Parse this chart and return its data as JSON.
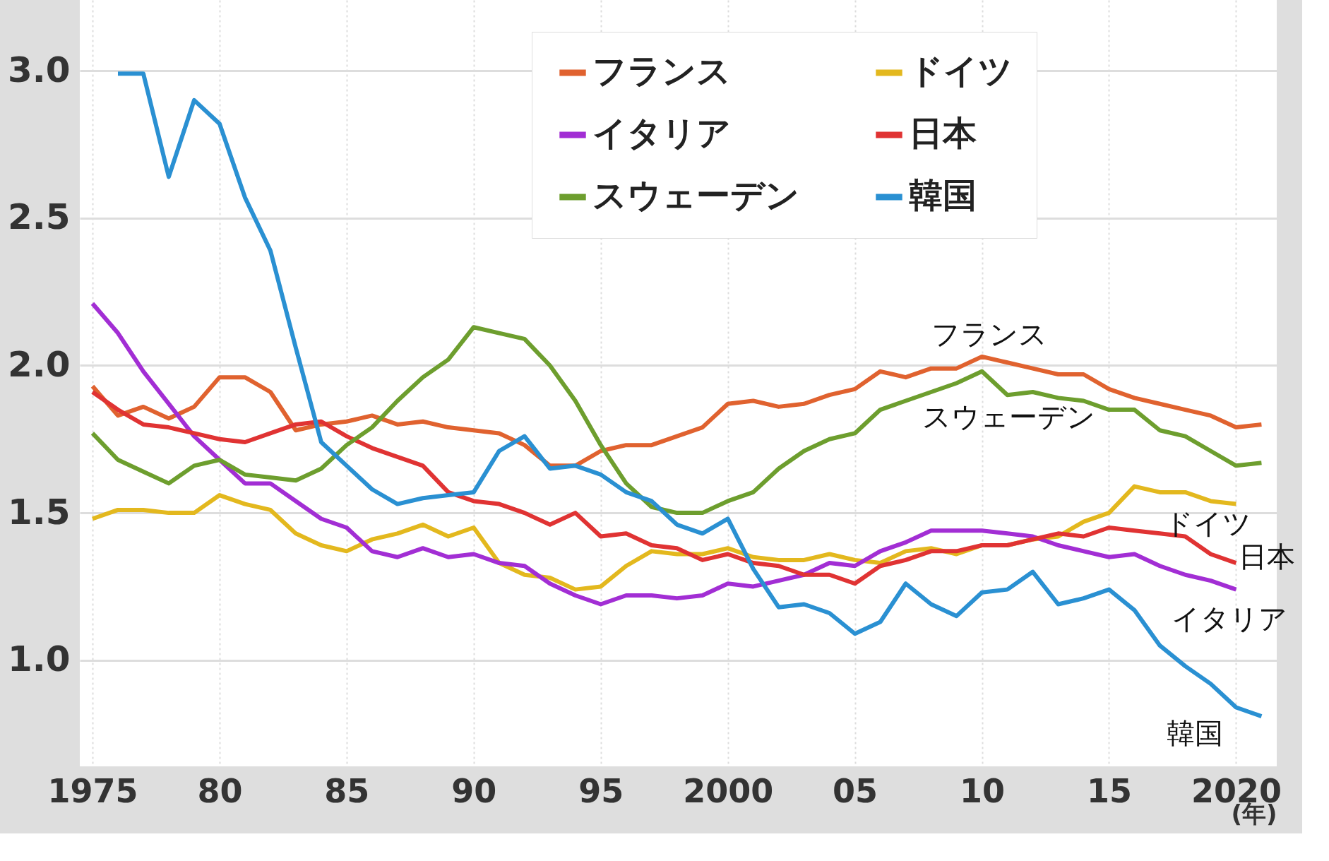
{
  "chart_data": {
    "type": "line",
    "xlabel": "(年)",
    "x": [
      1975,
      1976,
      1977,
      1978,
      1979,
      1980,
      1981,
      1982,
      1983,
      1984,
      1985,
      1986,
      1987,
      1988,
      1989,
      1990,
      1991,
      1992,
      1993,
      1994,
      1995,
      1996,
      1997,
      1998,
      1999,
      2000,
      2001,
      2002,
      2003,
      2004,
      2005,
      2006,
      2007,
      2008,
      2009,
      2010,
      2011,
      2012,
      2013,
      2014,
      2015,
      2016,
      2017,
      2018,
      2019,
      2020,
      2021
    ],
    "series": [
      {
        "name": "フランス",
        "color": "#e0622f",
        "values": [
          1.93,
          1.83,
          1.86,
          1.82,
          1.86,
          1.96,
          1.96,
          1.91,
          1.78,
          1.8,
          1.81,
          1.83,
          1.8,
          1.81,
          1.79,
          1.78,
          1.77,
          1.73,
          1.66,
          1.66,
          1.71,
          1.73,
          1.73,
          1.76,
          1.79,
          1.87,
          1.88,
          1.86,
          1.87,
          1.9,
          1.92,
          1.98,
          1.96,
          1.99,
          1.99,
          2.03,
          2.01,
          1.99,
          1.97,
          1.97,
          1.92,
          1.89,
          1.87,
          1.85,
          1.83,
          1.79,
          1.8
        ]
      },
      {
        "name": "ドイツ",
        "color": "#e3b81e",
        "values": [
          1.48,
          1.51,
          1.51,
          1.5,
          1.5,
          1.56,
          1.53,
          1.51,
          1.43,
          1.39,
          1.37,
          1.41,
          1.43,
          1.46,
          1.42,
          1.45,
          1.33,
          1.29,
          1.28,
          1.24,
          1.25,
          1.32,
          1.37,
          1.36,
          1.36,
          1.38,
          1.35,
          1.34,
          1.34,
          1.36,
          1.34,
          1.33,
          1.37,
          1.38,
          1.36,
          1.39,
          1.39,
          1.41,
          1.42,
          1.47,
          1.5,
          1.59,
          1.57,
          1.57,
          1.54,
          1.53,
          null
        ]
      },
      {
        "name": "イタリア",
        "color": "#a22ed4",
        "values": [
          2.21,
          2.11,
          1.98,
          1.87,
          1.76,
          1.68,
          1.6,
          1.6,
          1.54,
          1.48,
          1.45,
          1.37,
          1.35,
          1.38,
          1.35,
          1.36,
          1.33,
          1.32,
          1.26,
          1.22,
          1.19,
          1.22,
          1.22,
          1.21,
          1.22,
          1.26,
          1.25,
          1.27,
          1.29,
          1.33,
          1.32,
          1.37,
          1.4,
          1.44,
          1.44,
          1.44,
          1.43,
          1.42,
          1.39,
          1.37,
          1.35,
          1.36,
          1.32,
          1.29,
          1.27,
          1.24,
          null
        ]
      },
      {
        "name": "日本",
        "color": "#e03333",
        "values": [
          1.91,
          1.85,
          1.8,
          1.79,
          1.77,
          1.75,
          1.74,
          1.77,
          1.8,
          1.81,
          1.76,
          1.72,
          1.69,
          1.66,
          1.57,
          1.54,
          1.53,
          1.5,
          1.46,
          1.5,
          1.42,
          1.43,
          1.39,
          1.38,
          1.34,
          1.36,
          1.33,
          1.32,
          1.29,
          1.29,
          1.26,
          1.32,
          1.34,
          1.37,
          1.37,
          1.39,
          1.39,
          1.41,
          1.43,
          1.42,
          1.45,
          1.44,
          1.43,
          1.42,
          1.36,
          1.33,
          null
        ]
      },
      {
        "name": "スウェーデン",
        "color": "#6d9e2e",
        "values": [
          1.77,
          1.68,
          1.64,
          1.6,
          1.66,
          1.68,
          1.63,
          1.62,
          1.61,
          1.65,
          1.73,
          1.79,
          1.88,
          1.96,
          2.02,
          2.13,
          2.11,
          2.09,
          2.0,
          1.88,
          1.73,
          1.6,
          1.52,
          1.5,
          1.5,
          1.54,
          1.57,
          1.65,
          1.71,
          1.75,
          1.77,
          1.85,
          1.88,
          1.91,
          1.94,
          1.98,
          1.9,
          1.91,
          1.89,
          1.88,
          1.85,
          1.85,
          1.78,
          1.76,
          1.71,
          1.66,
          1.67
        ]
      },
      {
        "name": "韓国",
        "color": "#2a90d2",
        "values": [
          null,
          2.99,
          2.99,
          2.64,
          2.9,
          2.82,
          2.57,
          2.39,
          2.06,
          1.74,
          1.66,
          1.58,
          1.53,
          1.55,
          1.56,
          1.57,
          1.71,
          1.76,
          1.65,
          1.66,
          1.63,
          1.57,
          1.54,
          1.46,
          1.43,
          1.48,
          1.31,
          1.18,
          1.19,
          1.16,
          1.09,
          1.13,
          1.26,
          1.19,
          1.15,
          1.23,
          1.24,
          1.3,
          1.19,
          1.21,
          1.24,
          1.17,
          1.05,
          0.98,
          0.92,
          0.84,
          0.81
        ]
      }
    ],
    "xlim": [
      1974.5,
      2021.6
    ],
    "xticks": [
      1975,
      {
        "value": 1980,
        "label": "80"
      },
      {
        "value": 1985,
        "label": "85"
      },
      {
        "value": 1990,
        "label": "90"
      },
      {
        "value": 1995,
        "label": "95"
      },
      2000,
      {
        "value": 2005,
        "label": "05"
      },
      {
        "value": 2010,
        "label": "10"
      },
      {
        "value": 2015,
        "label": "15"
      },
      2020
    ],
    "ylim": [
      0.64,
      3.24
    ],
    "yticks": [
      {
        "value": 1,
        "label": "1.0"
      },
      1.5,
      {
        "value": 2,
        "label": "2.0"
      },
      2.5,
      {
        "value": 3,
        "label": "3.0"
      }
    ],
    "grid": true,
    "legend": "top right",
    "line_style": "solid",
    "marker": "none",
    "annotations": [
      "フランス",
      "スウェーデン",
      "ドイツ",
      "日本",
      "イタリア",
      "韓国"
    ]
  }
}
